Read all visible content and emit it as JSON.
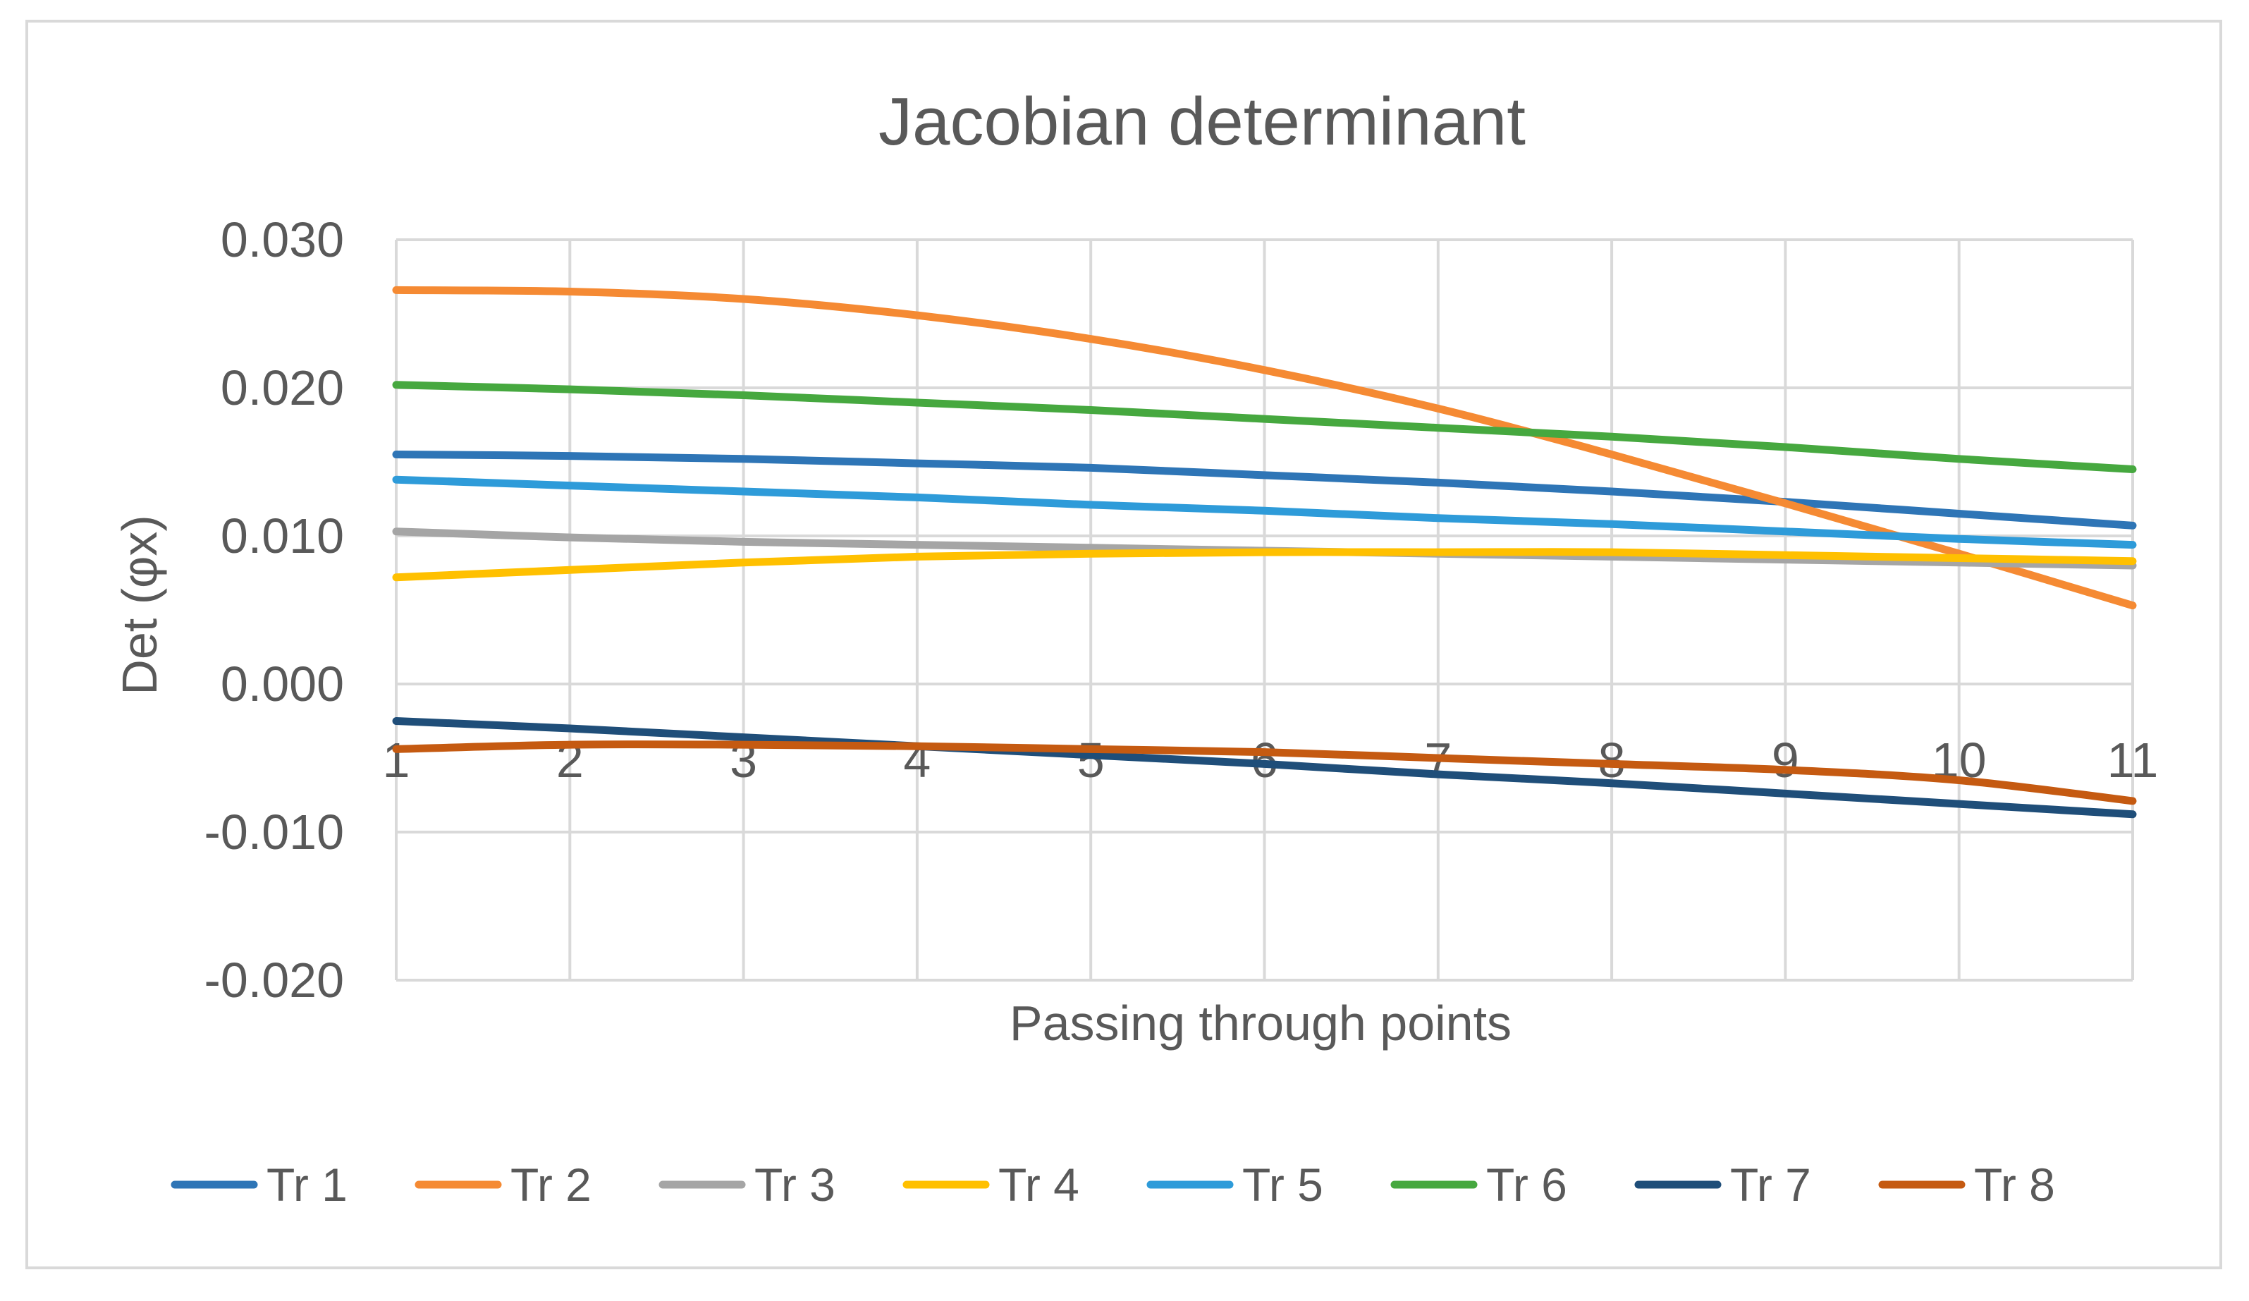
{
  "chart_data": {
    "type": "line",
    "title": "Jacobian determinant",
    "xlabel": "Passing through points",
    "ylabel": "Det (φx)",
    "x": [
      1,
      2,
      3,
      4,
      5,
      6,
      7,
      8,
      9,
      10,
      11
    ],
    "x_tick_labels": [
      "1",
      "2",
      "3",
      "4",
      "5",
      "6",
      "7",
      "8",
      "9",
      "10",
      "11"
    ],
    "ylim": [
      -0.02,
      0.03
    ],
    "y_ticks": [
      -0.02,
      -0.01,
      0.0,
      0.01,
      0.02,
      0.03
    ],
    "y_tick_labels": [
      "-0.020",
      "-0.010",
      "0.000",
      "0.010",
      "0.020",
      "0.030"
    ],
    "grid": true,
    "legend_position": "bottom",
    "series": [
      {
        "name": "Tr 1",
        "color": "#2E75B6",
        "values": [
          0.0155,
          0.0154,
          0.0152,
          0.0149,
          0.0146,
          0.0141,
          0.0136,
          0.013,
          0.0123,
          0.0115,
          0.0107
        ]
      },
      {
        "name": "Tr 2",
        "color": "#F58A33",
        "values": [
          0.0266,
          0.0265,
          0.026,
          0.0249,
          0.0233,
          0.0212,
          0.0186,
          0.0155,
          0.0122,
          0.0088,
          0.0053
        ]
      },
      {
        "name": "Tr 3",
        "color": "#A5A5A5",
        "values": [
          0.0103,
          0.0099,
          0.0096,
          0.0094,
          0.0092,
          0.009,
          0.0088,
          0.0086,
          0.0084,
          0.0082,
          0.008
        ]
      },
      {
        "name": "Tr 4",
        "color": "#FFC000",
        "values": [
          0.0072,
          0.0077,
          0.0082,
          0.0086,
          0.0088,
          0.0089,
          0.0089,
          0.0089,
          0.0087,
          0.0085,
          0.0083
        ]
      },
      {
        "name": "Tr 5",
        "color": "#2E9BD9",
        "values": [
          0.0138,
          0.0134,
          0.013,
          0.0126,
          0.0121,
          0.0117,
          0.0112,
          0.0108,
          0.0103,
          0.0098,
          0.0094
        ]
      },
      {
        "name": "Tr 6",
        "color": "#46A83F",
        "values": [
          0.0202,
          0.0199,
          0.0195,
          0.019,
          0.0185,
          0.0179,
          0.0173,
          0.0167,
          0.016,
          0.0152,
          0.0145
        ]
      },
      {
        "name": "Tr 7",
        "color": "#1F4E79",
        "values": [
          -0.0025,
          -0.003,
          -0.0036,
          -0.0042,
          -0.0048,
          -0.0054,
          -0.0061,
          -0.0067,
          -0.0074,
          -0.0081,
          -0.0088
        ]
      },
      {
        "name": "Tr 8",
        "color": "#C55A11",
        "values": [
          -0.0044,
          -0.0041,
          -0.0041,
          -0.0042,
          -0.0044,
          -0.0046,
          -0.005,
          -0.0054,
          -0.0058,
          -0.0065,
          -0.0079
        ]
      }
    ]
  }
}
